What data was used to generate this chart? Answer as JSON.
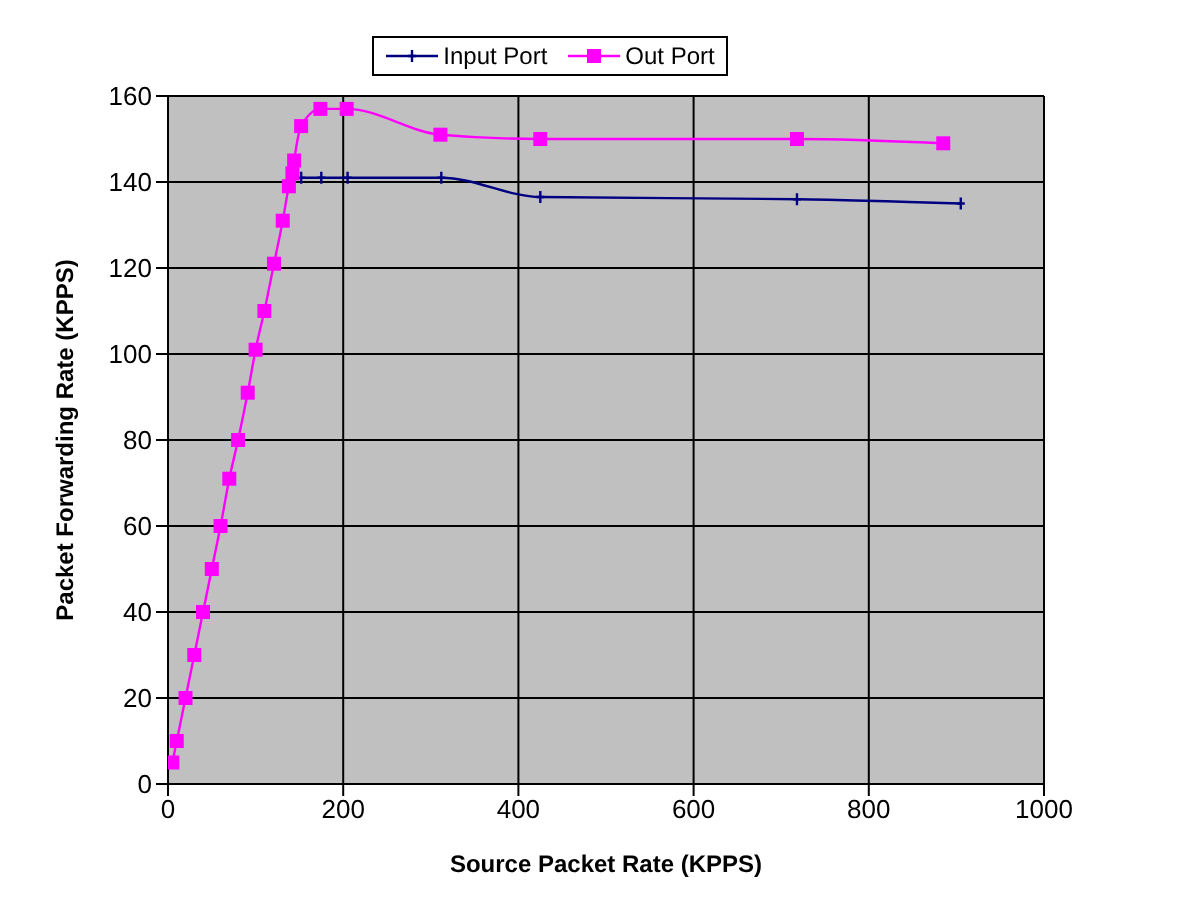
{
  "chart_data": {
    "type": "line",
    "xlabel": "Source Packet Rate (KPPS)",
    "ylabel": "Packet Forwarding Rate (KPPS)",
    "xlim": [
      0,
      1000
    ],
    "xticks": [
      0,
      200,
      400,
      600,
      800,
      1000
    ],
    "ylim": [
      0,
      160
    ],
    "yticks": [
      0,
      20,
      40,
      60,
      80,
      100,
      120,
      140,
      160
    ],
    "grid": true,
    "legend": "top",
    "line_style": "solid",
    "series": [
      {
        "name": "Input Port",
        "color": "#000080",
        "marker": "cross",
        "x": [
          152,
          175,
          205,
          312,
          425,
          718,
          905
        ],
        "values": [
          141,
          141,
          141,
          141,
          136.5,
          136,
          135
        ]
      },
      {
        "name": "Out Port",
        "color": "#ff00ff",
        "marker": "square",
        "x": [
          5,
          10,
          20,
          30,
          40,
          50,
          60,
          70,
          80,
          91,
          100,
          110,
          121,
          131,
          138,
          142,
          144,
          152,
          174,
          204,
          311,
          425,
          718,
          885
        ],
        "values": [
          5,
          10,
          20,
          30,
          40,
          50,
          60,
          71,
          80,
          91,
          101,
          110,
          121,
          131,
          139,
          142,
          145,
          153,
          157,
          157,
          151,
          150,
          150,
          149
        ]
      }
    ]
  }
}
